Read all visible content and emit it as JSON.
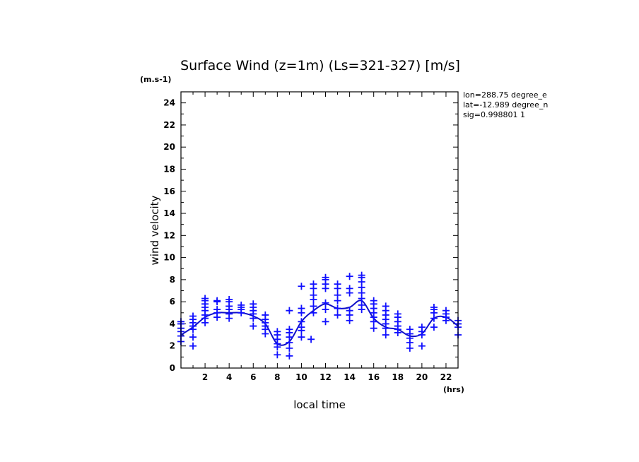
{
  "chart_data": {
    "type": "scatter",
    "title": "Surface Wind (z=1m) (Ls=321-327) [m/s]",
    "y_unit": "(m.s-1)",
    "ylabel": "wind velocity",
    "xlabel": "local time",
    "x_unit": "(hrs)",
    "info_lines": [
      "lon=288.75 degree_e",
      "lat=-12.989 degree_n",
      "sig=0.998801 1"
    ],
    "xlim": [
      0,
      23
    ],
    "ylim": [
      0,
      25
    ],
    "x_ticks": [
      2,
      4,
      6,
      8,
      10,
      12,
      14,
      16,
      18,
      20,
      22
    ],
    "y_ticks": [
      0,
      2,
      4,
      6,
      8,
      10,
      12,
      14,
      16,
      18,
      20,
      22,
      24
    ],
    "colors": {
      "marker": "#1010ff",
      "line": "#1010c8",
      "frame": "#000000"
    },
    "mean_line": {
      "x": [
        0,
        1,
        2,
        3,
        4,
        5,
        6,
        7,
        8,
        9,
        10,
        11,
        12,
        13,
        14,
        15,
        16,
        17,
        18,
        19,
        20,
        21,
        22,
        23
      ],
      "y": [
        3.0,
        3.7,
        4.6,
        5.0,
        5.0,
        5.0,
        4.7,
        4.0,
        2.2,
        2.4,
        4.2,
        5.2,
        5.8,
        5.4,
        5.5,
        6.1,
        4.5,
        3.7,
        3.5,
        2.9,
        3.1,
        4.5,
        4.6,
        3.8
      ]
    },
    "points": [
      {
        "x": 0.0,
        "y": [
          2.4,
          2.9,
          3.3,
          3.6,
          4.0,
          4.2
        ]
      },
      {
        "x": 1.0,
        "y": [
          2.0,
          2.8,
          3.5,
          3.8,
          4.1,
          4.4,
          4.7
        ]
      },
      {
        "x": 2.0,
        "y": [
          4.1,
          4.5,
          4.8,
          5.2,
          5.5,
          5.8,
          6.1,
          6.3
        ]
      },
      {
        "x": 3.0,
        "y": [
          4.6,
          5.0,
          5.3,
          6.0,
          6.1
        ]
      },
      {
        "x": 4.0,
        "y": [
          4.5,
          4.9,
          5.3,
          5.6,
          6.0,
          6.2
        ]
      },
      {
        "x": 5.0,
        "y": [
          5.0,
          5.3,
          5.5,
          5.7
        ]
      },
      {
        "x": 6.0,
        "y": [
          3.8,
          4.5,
          4.9,
          5.2,
          5.5,
          5.8
        ]
      },
      {
        "x": 7.0,
        "y": [
          3.1,
          3.5,
          3.8,
          4.1,
          4.4,
          4.8
        ]
      },
      {
        "x": 8.0,
        "y": [
          1.2,
          1.9,
          2.2,
          2.6,
          3.0,
          3.3
        ]
      },
      {
        "x": 9.0,
        "y": [
          1.1,
          1.8,
          2.3,
          2.8,
          3.2,
          3.5,
          5.2
        ]
      },
      {
        "x": 10.0,
        "y": [
          2.8,
          3.4,
          3.7,
          4.2,
          5.0,
          5.4,
          7.4
        ]
      },
      {
        "x": 10.8,
        "y": [
          2.6
        ]
      },
      {
        "x": 11.0,
        "y": [
          5.0,
          5.6,
          6.2,
          6.6,
          7.2,
          7.6
        ]
      },
      {
        "x": 12.0,
        "y": [
          4.2,
          5.3,
          5.9,
          7.2,
          7.6,
          8.0,
          8.2
        ]
      },
      {
        "x": 13.0,
        "y": [
          4.8,
          5.4,
          6.1,
          6.6,
          7.2,
          7.6
        ]
      },
      {
        "x": 14.0,
        "y": [
          4.3,
          4.8,
          5.2,
          6.8,
          7.2,
          8.3
        ]
      },
      {
        "x": 15.0,
        "y": [
          5.3,
          5.7,
          6.3,
          6.8,
          7.3,
          7.8,
          8.2,
          8.4
        ]
      },
      {
        "x": 16.0,
        "y": [
          3.6,
          4.2,
          4.6,
          5.0,
          5.4,
          5.8,
          6.1
        ]
      },
      {
        "x": 17.0,
        "y": [
          3.0,
          3.6,
          4.0,
          4.4,
          4.8,
          5.2,
          5.6
        ]
      },
      {
        "x": 18.0,
        "y": [
          3.2,
          3.5,
          3.8,
          4.2,
          4.6,
          4.9
        ]
      },
      {
        "x": 19.0,
        "y": [
          1.8,
          2.3,
          2.7,
          3.1,
          3.5
        ]
      },
      {
        "x": 20.0,
        "y": [
          2.0,
          3.0,
          3.3,
          3.7
        ]
      },
      {
        "x": 21.0,
        "y": [
          3.7,
          4.5,
          5.0,
          5.3,
          5.5
        ]
      },
      {
        "x": 22.0,
        "y": [
          4.3,
          4.6,
          4.9,
          5.2
        ]
      },
      {
        "x": 23.0,
        "y": [
          3.0,
          3.7,
          4.0,
          4.3
        ]
      }
    ]
  }
}
